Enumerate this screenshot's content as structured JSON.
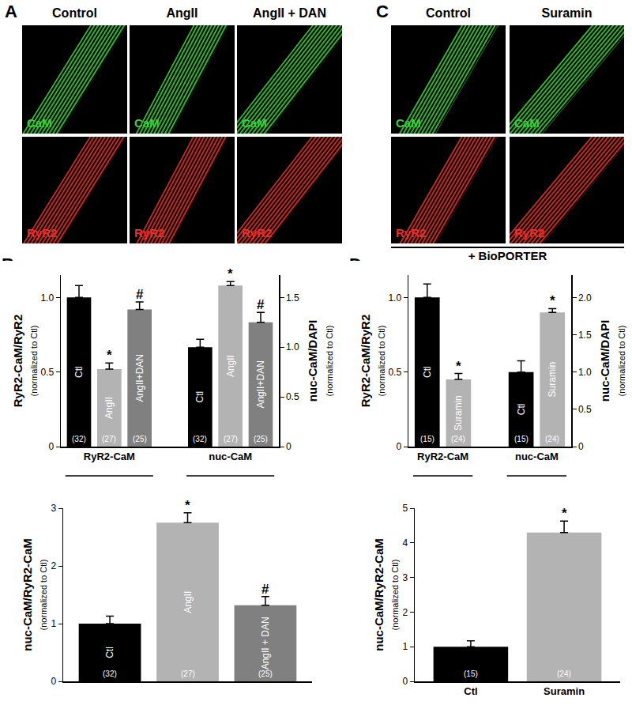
{
  "images": [
    {
      "label": "A",
      "columns": [
        "Control",
        "AngII",
        "AngII + DAN"
      ],
      "rows": [
        {
          "label": "CaM",
          "color": "#3ad13a"
        },
        {
          "label": "RyR2",
          "color": "#e8302a"
        }
      ]
    },
    {
      "label": "C",
      "columns": [
        "Control",
        "Suramin"
      ],
      "rows": [
        {
          "label": "CaM",
          "color": "#3ad13a"
        },
        {
          "label": "RyR2",
          "color": "#e8302a"
        }
      ],
      "footer": "+ BioPORTER"
    }
  ],
  "chart_data": [
    {
      "type": "bar",
      "panel": "B",
      "ylabel": "RyR2-CaM/RyR2",
      "ylabel_note": "(normalized to Ctl)",
      "y2label": "nuc-CaM/DAPI",
      "y2label_note": "(normalized to Ctl)",
      "colors": [
        "#000000",
        "#b3b3b3",
        "#808080"
      ],
      "series": [
        {
          "name": "RyR2-CaM",
          "axis": "y",
          "categories": [
            "Ctl",
            "AngII",
            "AngII+DAN"
          ],
          "values": [
            1.0,
            0.52,
            0.92
          ],
          "errors": [
            0.08,
            0.04,
            0.05
          ],
          "n_labels": [
            "(32)",
            "(27)",
            "(25)"
          ],
          "marks": [
            null,
            "*",
            "#"
          ]
        },
        {
          "name": "nuc-CaM",
          "axis": "y2",
          "categories": [
            "Ctl",
            "AngII",
            "AngII+DAN"
          ],
          "values": [
            1.0,
            1.62,
            1.25
          ],
          "errors": [
            0.08,
            0.04,
            0.1
          ],
          "n_labels": [
            "(32)",
            "(27)",
            "(25)"
          ],
          "marks": [
            null,
            "*",
            "#"
          ]
        }
      ],
      "ylim": [
        0,
        1.15
      ],
      "yticks": [
        0,
        0.5,
        {
          "value": 1,
          "label": "1.0"
        }
      ],
      "y2lim": [
        0,
        1.725
      ],
      "y2ticks": [
        0,
        0.5,
        {
          "value": 1,
          "label": "1.0"
        },
        1.5
      ],
      "grid": false
    },
    {
      "type": "bar",
      "ylabel": "nuc-CaM/RyR2-CaM",
      "ylabel_note": "(normalized to Ctl)",
      "categories": [
        "Ctl",
        "AngII",
        "AngII + DAN"
      ],
      "values": [
        1.0,
        2.75,
        1.32
      ],
      "errors": [
        0.13,
        0.17,
        0.15
      ],
      "n_labels": [
        "(32)",
        "(27)",
        "(25)"
      ],
      "marks": [
        null,
        "*",
        "#"
      ],
      "colors": [
        "#000000",
        "#b3b3b3",
        "#808080"
      ],
      "ylim": [
        0,
        3
      ],
      "yticks": [
        0,
        1,
        2,
        3
      ],
      "tick_labels": "y",
      "grid": false
    },
    {
      "type": "bar",
      "panel": "D",
      "ylabel": "RyR2-CaM/RyR2",
      "ylabel_note": "(normalized to Ctl)",
      "y2label": "nuc-CaM/DAPI",
      "y2label_note": "(normalized to Ctl)",
      "colors": [
        "#000000",
        "#b3b3b3"
      ],
      "series": [
        {
          "name": "RyR2-CaM",
          "axis": "y",
          "categories": [
            "Ctl",
            "Suramin"
          ],
          "values": [
            1.0,
            0.45
          ],
          "errors": [
            0.09,
            0.04
          ],
          "n_labels": [
            "(15)",
            "(24)"
          ],
          "marks": [
            null,
            "*"
          ]
        },
        {
          "name": "nuc-CaM",
          "axis": "y2",
          "categories": [
            "Ctl",
            "Suramin"
          ],
          "values": [
            1.0,
            1.8
          ],
          "errors": [
            0.15,
            0.05
          ],
          "n_labels": [
            "(15)",
            "(24)"
          ],
          "marks": [
            null,
            "*"
          ]
        }
      ],
      "ylim": [
        0,
        1.15
      ],
      "yticks": [
        0,
        0.5,
        {
          "value": 1,
          "label": "1.0"
        }
      ],
      "y2lim": [
        0,
        2.3
      ],
      "y2ticks": [
        0,
        0.5,
        {
          "value": 1,
          "label": "1.0"
        },
        1.5,
        {
          "value": 2,
          "label": "2.0"
        }
      ],
      "grid": false
    },
    {
      "type": "bar",
      "ylabel": "nuc-CaM/RyR2-CaM",
      "ylabel_note": "(normalized to Ctl)",
      "categories": [
        "Ctl",
        "Suramin"
      ],
      "values": [
        1.0,
        4.3
      ],
      "errors": [
        0.17,
        0.33
      ],
      "n_labels": [
        "(15)",
        "(24)"
      ],
      "marks": [
        null,
        "*"
      ],
      "colors": [
        "#000000",
        "#b3b3b3"
      ],
      "ylim": [
        0,
        5
      ],
      "yticks": [
        0,
        1,
        2,
        3,
        4,
        5
      ],
      "grid": false
    }
  ]
}
